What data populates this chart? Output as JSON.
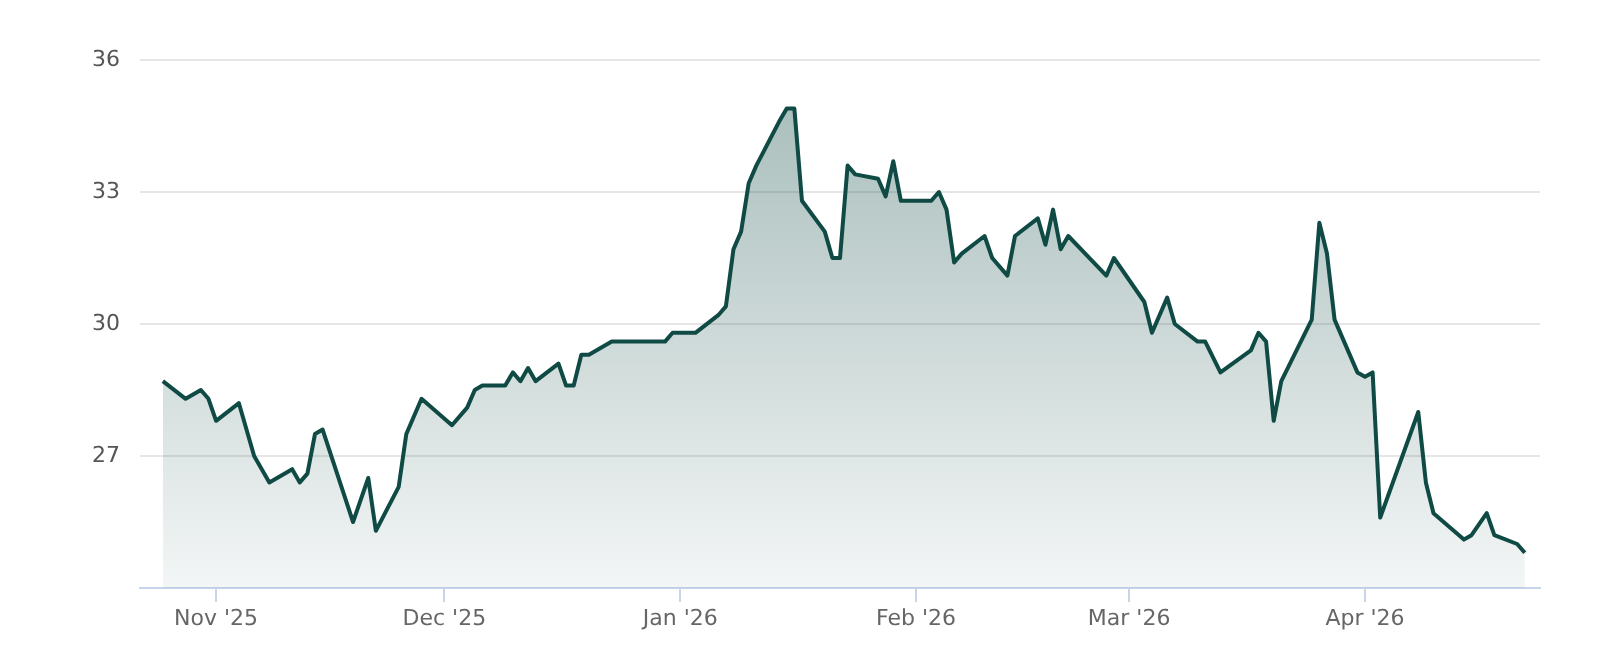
{
  "chart_data": {
    "type": "area",
    "x": [
      "2025-10-25",
      "2025-10-28",
      "2025-10-30",
      "2025-10-31",
      "2025-11-01",
      "2025-11-04",
      "2025-11-06",
      "2025-11-08",
      "2025-11-11",
      "2025-11-12",
      "2025-11-13",
      "2025-11-14",
      "2025-11-15",
      "2025-11-19",
      "2025-11-21",
      "2025-11-22",
      "2025-11-25",
      "2025-11-26",
      "2025-11-28",
      "2025-12-02",
      "2025-12-04",
      "2025-12-05",
      "2025-12-06",
      "2025-12-09",
      "2025-12-10",
      "2025-12-11",
      "2025-12-12",
      "2025-12-13",
      "2025-12-16",
      "2025-12-17",
      "2025-12-18",
      "2025-12-19",
      "2025-12-20",
      "2025-12-23",
      "2025-12-24",
      "2025-12-30",
      "2025-12-31",
      "2026-01-03",
      "2026-01-06",
      "2026-01-07",
      "2026-01-08",
      "2026-01-09",
      "2026-01-10",
      "2026-01-11",
      "2026-01-14",
      "2026-01-15",
      "2026-01-16",
      "2026-01-17",
      "2026-01-20",
      "2026-01-21",
      "2026-01-22",
      "2026-01-23",
      "2026-01-24",
      "2026-01-27",
      "2026-01-28",
      "2026-01-29",
      "2026-01-30",
      "2026-02-03",
      "2026-02-04",
      "2026-02-05",
      "2026-02-06",
      "2026-02-07",
      "2026-02-10",
      "2026-02-11",
      "2026-02-13",
      "2026-02-14",
      "2026-02-17",
      "2026-02-18",
      "2026-02-19",
      "2026-02-20",
      "2026-02-21",
      "2026-02-26",
      "2026-02-27",
      "2026-03-03",
      "2026-03-04",
      "2026-03-06",
      "2026-03-07",
      "2026-03-10",
      "2026-03-11",
      "2026-03-13",
      "2026-03-17",
      "2026-03-18",
      "2026-03-19",
      "2026-03-20",
      "2026-03-21",
      "2026-03-25",
      "2026-03-26",
      "2026-03-27",
      "2026-03-28",
      "2026-03-31",
      "2026-04-01",
      "2026-04-02",
      "2026-04-03",
      "2026-04-08",
      "2026-04-09",
      "2026-04-10",
      "2026-04-14",
      "2026-04-15",
      "2026-04-17",
      "2026-04-18",
      "2026-04-21",
      "2026-04-22"
    ],
    "series": [
      {
        "color": "#0f4a44",
        "values": [
          28.7,
          28.3,
          28.5,
          28.3,
          27.8,
          28.2,
          27.0,
          26.4,
          26.7,
          26.4,
          26.6,
          27.5,
          27.6,
          25.5,
          26.5,
          25.3,
          26.3,
          27.5,
          28.3,
          27.7,
          28.1,
          28.5,
          28.6,
          28.6,
          28.9,
          28.7,
          29.0,
          28.7,
          29.1,
          28.6,
          28.6,
          29.3,
          29.3,
          29.6,
          29.6,
          29.6,
          29.8,
          29.8,
          30.2,
          30.4,
          31.7,
          32.1,
          33.2,
          33.6,
          34.6,
          34.9,
          34.9,
          32.8,
          32.1,
          31.5,
          31.5,
          33.6,
          33.4,
          33.3,
          32.9,
          33.7,
          32.8,
          32.8,
          33.0,
          32.6,
          31.4,
          31.6,
          32.0,
          31.5,
          31.1,
          32.0,
          32.4,
          31.8,
          32.6,
          31.7,
          32.0,
          31.1,
          31.5,
          30.5,
          29.8,
          30.6,
          30.0,
          29.6,
          29.6,
          28.9,
          29.4,
          29.8,
          29.6,
          27.8,
          28.7,
          30.1,
          32.3,
          31.6,
          30.1,
          28.9,
          28.8,
          28.9,
          25.6,
          28.0,
          26.4,
          25.7,
          25.1,
          25.2,
          25.7,
          25.2,
          25.0,
          24.8
        ]
      }
    ],
    "xlim": [
      "2025-10-22",
      "2026-04-24"
    ],
    "xticks": [
      {
        "value": "2025-11-01",
        "label": "Nov '25"
      },
      {
        "value": "2025-12-01",
        "label": "Dec '25"
      },
      {
        "value": "2026-01-01",
        "label": "Jan '26"
      },
      {
        "value": "2026-02-01",
        "label": "Feb '26"
      },
      {
        "value": "2026-03-01",
        "label": "Mar '26"
      },
      {
        "value": "2026-04-01",
        "label": "Apr '26"
      }
    ],
    "ylim": [
      24,
      36
    ],
    "yticks": [
      27,
      30,
      33,
      36
    ],
    "grid": "y",
    "legend": false
  }
}
